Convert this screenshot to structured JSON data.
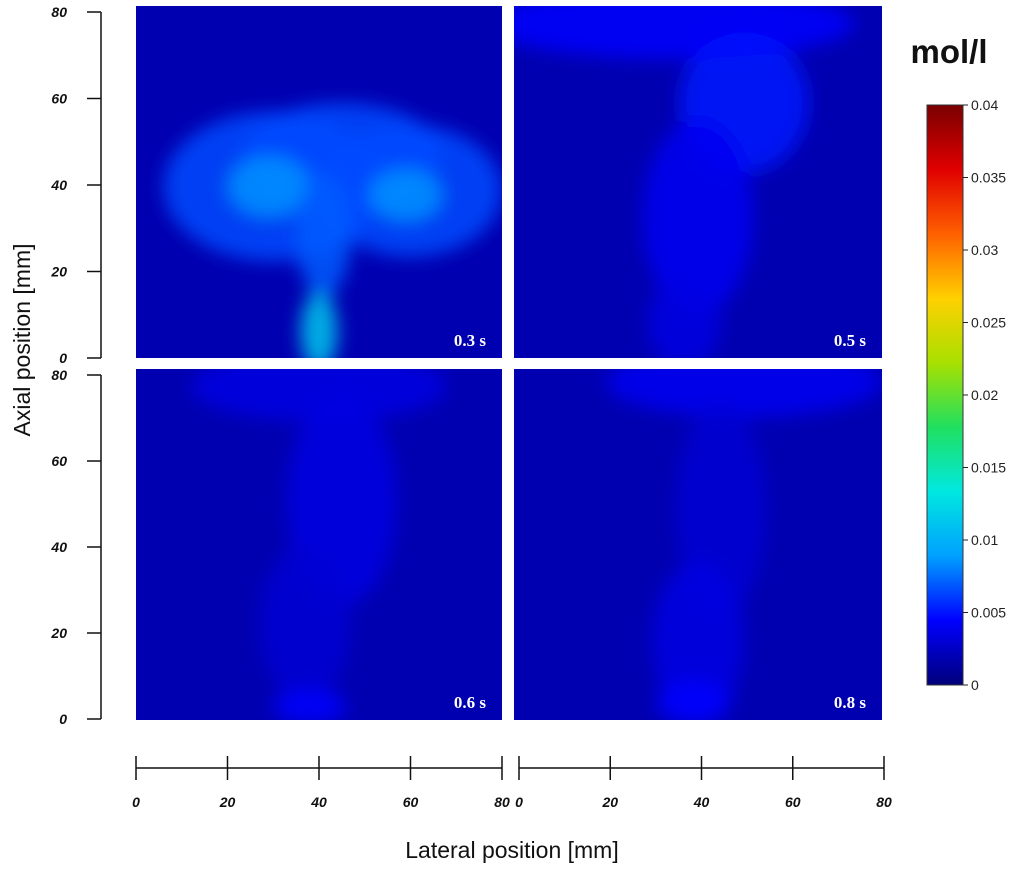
{
  "chart_data": {
    "type": "heatmap",
    "xlabel": "Lateral position [mm]",
    "ylabel": "Axial position [mm]",
    "xlim": [
      0,
      80
    ],
    "ylim": [
      0,
      80
    ],
    "x_ticks": [
      "0",
      "20",
      "40",
      "60",
      "80"
    ],
    "y_ticks": [
      "0",
      "20",
      "40",
      "60",
      "80"
    ],
    "colorbar": {
      "unit": "mol/l",
      "range": [
        0,
        0.04
      ],
      "ticks": [
        "0",
        "0.005",
        "0.01",
        "0.015",
        "0.02",
        "0.025",
        "0.03",
        "0.035",
        "0.04"
      ],
      "colormap": [
        "#00007a",
        "#0000ff",
        "#00a0ff",
        "#00e8e0",
        "#20e060",
        "#a8e000",
        "#ffd000",
        "#ff6000",
        "#e00000",
        "#7a0000"
      ]
    },
    "panels": [
      {
        "label": "0.3 s",
        "blobs": [
          {
            "x": 30,
            "y": 39,
            "rx": 24,
            "ry": 17,
            "value": 0.0065
          },
          {
            "x": 60,
            "y": 38,
            "rx": 20,
            "ry": 15,
            "value": 0.0065
          },
          {
            "x": 45,
            "y": 46,
            "rx": 22,
            "ry": 12,
            "value": 0.0065
          },
          {
            "x": 29,
            "y": 39,
            "rx": 9,
            "ry": 7,
            "value": 0.0085
          },
          {
            "x": 59,
            "y": 37,
            "rx": 8,
            "ry": 6,
            "value": 0.0085
          },
          {
            "x": 41,
            "y": 28,
            "rx": 6,
            "ry": 14,
            "value": 0.007
          },
          {
            "x": 40,
            "y": 6,
            "rx": 4,
            "ry": 9,
            "value": 0.0115
          }
        ]
      },
      {
        "label": "0.5 s",
        "blobs": [
          {
            "x": 34,
            "y": 76,
            "rx": 40,
            "ry": 8,
            "value": 0.0045
          },
          {
            "x": 50,
            "y": 58,
            "rx": 14,
            "ry": 16,
            "value": 0.005
          },
          {
            "x": 40,
            "y": 32,
            "rx": 12,
            "ry": 22,
            "value": 0.004
          },
          {
            "x": 37,
            "y": 8,
            "rx": 8,
            "ry": 10,
            "value": 0.0035
          }
        ]
      },
      {
        "label": "0.6 s",
        "blobs": [
          {
            "x": 40,
            "y": 76,
            "rx": 28,
            "ry": 8,
            "value": 0.0035
          },
          {
            "x": 45,
            "y": 50,
            "rx": 12,
            "ry": 24,
            "value": 0.0035
          },
          {
            "x": 37,
            "y": 22,
            "rx": 10,
            "ry": 18,
            "value": 0.003
          },
          {
            "x": 38,
            "y": 3,
            "rx": 8,
            "ry": 4,
            "value": 0.0045
          }
        ]
      },
      {
        "label": "0.8 s",
        "blobs": [
          {
            "x": 50,
            "y": 77,
            "rx": 30,
            "ry": 8,
            "value": 0.004
          },
          {
            "x": 45,
            "y": 48,
            "rx": 10,
            "ry": 24,
            "value": 0.003
          },
          {
            "x": 40,
            "y": 18,
            "rx": 10,
            "ry": 18,
            "value": 0.0035
          },
          {
            "x": 39,
            "y": 4,
            "rx": 8,
            "ry": 5,
            "value": 0.0045
          }
        ]
      }
    ]
  }
}
